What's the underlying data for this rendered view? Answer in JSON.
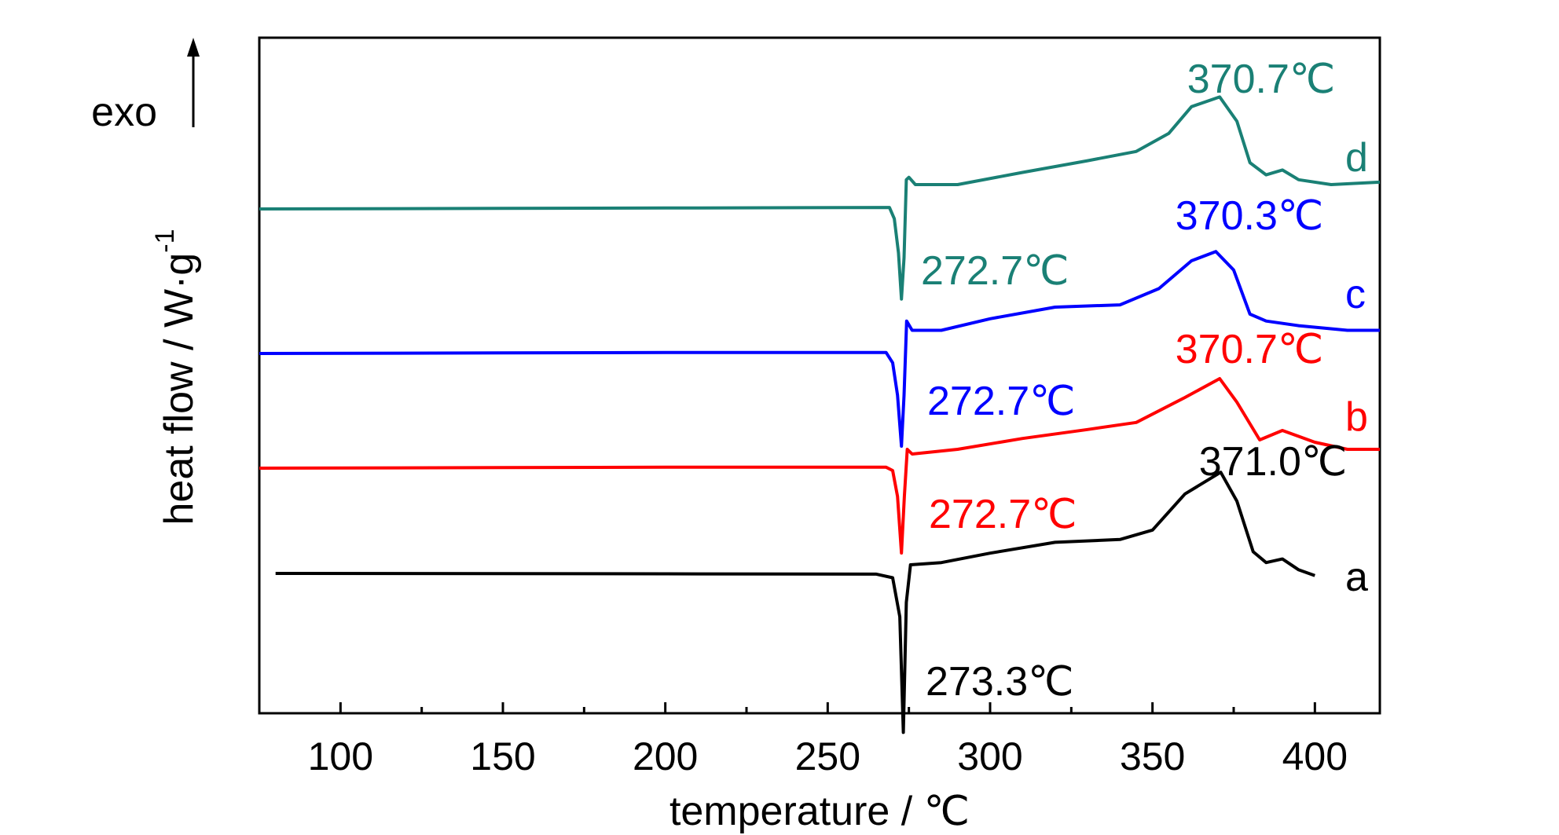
{
  "chart_data": {
    "type": "line",
    "xlabel": "temperature / ℃",
    "ylabel": "heat flow / W·g",
    "ylabel_sup": "-1",
    "exo_label": "exo",
    "xlim": [
      75,
      420
    ],
    "x_ticks": [
      100,
      150,
      200,
      250,
      300,
      350,
      400
    ],
    "x_tick_labels": [
      "100",
      "150",
      "200",
      "250",
      "300",
      "350",
      "400"
    ],
    "y_ticks_shown": false,
    "grid": false,
    "series": [
      {
        "name": "a",
        "color": "#000000",
        "points": [
          [
            80,
            0
          ],
          [
            200,
            -0.005
          ],
          [
            265,
            -0.01
          ],
          [
            270,
            -0.06
          ],
          [
            272.2,
            -0.6
          ],
          [
            273.3,
            -2.2
          ],
          [
            274.2,
            -0.4
          ],
          [
            275.5,
            0.12
          ],
          [
            285,
            0.15
          ],
          [
            300,
            0.28
          ],
          [
            320,
            0.43
          ],
          [
            340,
            0.47
          ],
          [
            350,
            0.6
          ],
          [
            360,
            1.1
          ],
          [
            371.0,
            1.4
          ],
          [
            376,
            1.0
          ],
          [
            381,
            0.3
          ],
          [
            385,
            0.15
          ],
          [
            390,
            0.2
          ],
          [
            395,
            0.05
          ],
          [
            400,
            -0.03
          ]
        ],
        "peak_label": "371.0℃",
        "dip_label": "273.3℃"
      },
      {
        "name": "b",
        "color": "#ff0000",
        "points": [
          [
            75,
            0
          ],
          [
            200,
            0.02
          ],
          [
            268,
            0.02
          ],
          [
            270,
            -0.05
          ],
          [
            271.5,
            -0.6
          ],
          [
            272.7,
            -1.8
          ],
          [
            273.6,
            -0.6
          ],
          [
            274.5,
            0.4
          ],
          [
            276,
            0.3
          ],
          [
            290,
            0.4
          ],
          [
            310,
            0.63
          ],
          [
            330,
            0.82
          ],
          [
            345,
            0.97
          ],
          [
            360,
            1.5
          ],
          [
            370.7,
            1.9
          ],
          [
            376,
            1.4
          ],
          [
            383,
            0.6
          ],
          [
            390,
            0.8
          ],
          [
            400,
            0.55
          ],
          [
            410,
            0.4
          ],
          [
            420,
            0.4
          ]
        ],
        "peak_label": "370.7℃",
        "dip_label": "272.7℃"
      },
      {
        "name": "c",
        "color": "#0000ff",
        "points": [
          [
            75,
            0
          ],
          [
            200,
            0.02
          ],
          [
            268,
            0.02
          ],
          [
            270,
            -0.2
          ],
          [
            271.5,
            -0.9
          ],
          [
            272.7,
            -2.0
          ],
          [
            273.5,
            -0.9
          ],
          [
            274.3,
            0.7
          ],
          [
            276,
            0.5
          ],
          [
            285,
            0.5
          ],
          [
            300,
            0.75
          ],
          [
            320,
            1.0
          ],
          [
            340,
            1.05
          ],
          [
            352,
            1.4
          ],
          [
            362,
            2.0
          ],
          [
            369.5,
            2.2
          ],
          [
            375,
            1.8
          ],
          [
            380,
            0.85
          ],
          [
            385,
            0.7
          ],
          [
            395,
            0.6
          ],
          [
            410,
            0.5
          ],
          [
            420,
            0.5
          ]
        ],
        "peak_label": "370.3℃",
        "dip_label": "272.7℃"
      },
      {
        "name": "d",
        "color": "#1a8075",
        "points": [
          [
            75,
            0
          ],
          [
            200,
            0.02
          ],
          [
            269,
            0.03
          ],
          [
            270.5,
            -0.2
          ],
          [
            271.8,
            -0.9
          ],
          [
            272.7,
            -1.85
          ],
          [
            273.5,
            -1.0
          ],
          [
            274.2,
            0.6
          ],
          [
            275,
            0.65
          ],
          [
            277,
            0.5
          ],
          [
            290,
            0.5
          ],
          [
            310,
            0.75
          ],
          [
            330,
            0.99
          ],
          [
            345,
            1.18
          ],
          [
            355,
            1.55
          ],
          [
            362,
            2.1
          ],
          [
            370.7,
            2.3
          ],
          [
            376,
            1.8
          ],
          [
            380,
            0.95
          ],
          [
            385,
            0.7
          ],
          [
            390,
            0.8
          ],
          [
            395,
            0.6
          ],
          [
            405,
            0.5
          ],
          [
            420,
            0.55
          ]
        ],
        "peak_label": "370.7℃",
        "dip_label": "272.7℃"
      }
    ]
  }
}
